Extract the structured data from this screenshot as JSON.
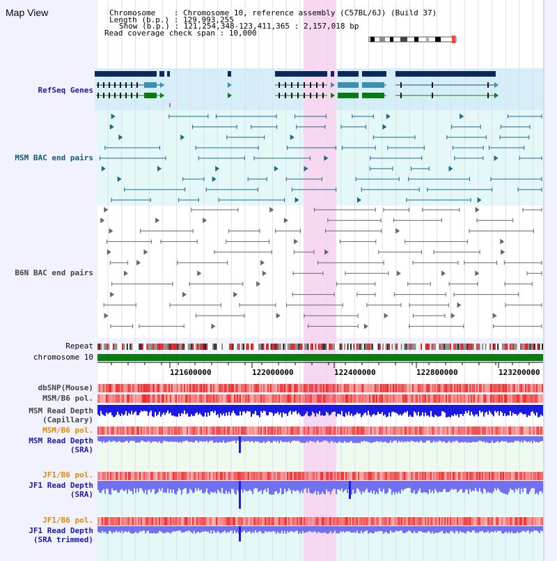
{
  "header": {
    "title": "Map View",
    "chromosome_label": "Chromosome    : ",
    "chromosome_value": "Chromosome 10, reference assembly (C57BL/6J) (Build 37)",
    "length_label": "Length (b.p.) : ",
    "length_value": "129,993,255",
    "show_label": "Show (b.p.) : ",
    "show_value": "121,254,348-123,411,365 : 2,157,018 bp",
    "coverage_label": "Read coverage check span : ",
    "coverage_value": "10,000"
  },
  "tracks": {
    "refseq": "RefSeq Genes",
    "msm_bac": "MSM BAC end pairs",
    "b6n_bac": "B6N BAC end pairs",
    "repeat": "Repeat",
    "chromosome": "chromosome 10",
    "dbsnp": "dbSNP(Mouse)",
    "msm_b6_pol_1": "MSM/B6 pol.",
    "msm_read_depth_cap_1": "MSM Read Depth",
    "msm_read_depth_cap_2": "(Capillary)",
    "msm_b6_pol_2": "MSM/B6 pol.",
    "msm_read_depth_sra_1": "MSM Read Depth",
    "msm_read_depth_sra_2": "(SRA)",
    "jf1_b6_pol_1": "JF1/B6 pol.",
    "jf1_read_depth_1": "JF1 Read Depth",
    "jf1_read_depth_2": "(SRA)",
    "jf1_b6_pol_2": "JF1/B6 pol.",
    "jf1_read_depth_trim_1": "JF1 Read Depth",
    "jf1_read_depth_trim_2": "(SRA trimmed)"
  },
  "axis": {
    "ticks": [
      "121600000",
      "122000000",
      "122400000",
      "122800000",
      "123200000"
    ]
  },
  "colors": {
    "highlight": "#f8d8f0",
    "refseq_bg": "#d6eef8",
    "bac_bg": "#e4f8f8",
    "gene_navy": "#0b2a5a",
    "gene_teal": "#3c8fb0",
    "gene_green": "#0a7a12",
    "chrom_green": "#0a7a12",
    "depth_blue": "#1a1ae0",
    "depth_lav": "#7070f0",
    "pol_red": "#ff3030"
  }
}
